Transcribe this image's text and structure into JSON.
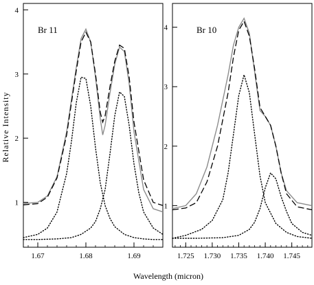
{
  "chart_data": [
    {
      "type": "line",
      "panel_label": "Br 11",
      "xlabel": "Wavelength (micron)",
      "ylabel": "Relative Intensity",
      "xlim": [
        1.667,
        1.696
      ],
      "ylim": [
        0.3,
        4.1
      ],
      "xticks": [
        1.67,
        1.68,
        1.69
      ],
      "yticks": [
        1,
        2,
        3,
        4
      ],
      "grid": false,
      "series": [
        {
          "style": "solid-gray",
          "color": "#8c8c8c",
          "x": [
            1.667,
            1.67,
            1.672,
            1.674,
            1.676,
            1.677,
            1.678,
            1.679,
            1.68,
            1.681,
            1.682,
            1.683,
            1.6835,
            1.684,
            1.685,
            1.686,
            1.687,
            1.688,
            1.689,
            1.69,
            1.692,
            1.694,
            1.696
          ],
          "y": [
            0.98,
            1.0,
            1.1,
            1.4,
            2.1,
            2.6,
            3.1,
            3.55,
            3.7,
            3.5,
            2.95,
            2.3,
            2.05,
            2.2,
            2.7,
            3.15,
            3.42,
            3.35,
            2.85,
            2.1,
            1.2,
            0.9,
            0.85
          ]
        },
        {
          "style": "dashed",
          "color": "#000000",
          "x": [
            1.667,
            1.67,
            1.672,
            1.674,
            1.676,
            1.677,
            1.678,
            1.679,
            1.68,
            1.681,
            1.682,
            1.683,
            1.6835,
            1.684,
            1.685,
            1.686,
            1.687,
            1.688,
            1.689,
            1.69,
            1.692,
            1.694,
            1.696
          ],
          "y": [
            0.96,
            0.98,
            1.08,
            1.38,
            2.05,
            2.55,
            3.05,
            3.5,
            3.65,
            3.5,
            3.0,
            2.4,
            2.25,
            2.35,
            2.8,
            3.2,
            3.45,
            3.4,
            2.95,
            2.25,
            1.35,
            1.0,
            0.95
          ]
        },
        {
          "style": "dotted",
          "color": "#000000",
          "x": [
            1.667,
            1.67,
            1.672,
            1.674,
            1.676,
            1.677,
            1.678,
            1.679,
            1.68,
            1.681,
            1.682,
            1.683,
            1.684,
            1.685,
            1.686,
            1.688,
            1.69,
            1.692,
            1.694,
            1.696
          ],
          "y": [
            0.45,
            0.5,
            0.6,
            0.85,
            1.45,
            1.95,
            2.55,
            2.95,
            2.93,
            2.5,
            1.85,
            1.3,
            0.95,
            0.75,
            0.62,
            0.5,
            0.45,
            0.43,
            0.42,
            0.42
          ]
        },
        {
          "style": "dotted",
          "color": "#000000",
          "x": [
            1.667,
            1.67,
            1.674,
            1.677,
            1.679,
            1.681,
            1.682,
            1.683,
            1.684,
            1.685,
            1.686,
            1.687,
            1.688,
            1.689,
            1.69,
            1.691,
            1.692,
            1.694,
            1.696
          ],
          "y": [
            0.42,
            0.42,
            0.43,
            0.45,
            0.5,
            0.6,
            0.7,
            0.9,
            1.2,
            1.75,
            2.35,
            2.72,
            2.65,
            2.2,
            1.6,
            1.15,
            0.85,
            0.6,
            0.5
          ]
        }
      ]
    },
    {
      "type": "line",
      "panel_label": "Br 10",
      "xlabel": "Wavelength (micron)",
      "ylabel": "",
      "xlim": [
        1.7225,
        1.7488
      ],
      "ylim": [
        0.3,
        4.4
      ],
      "xticks": [
        1.725,
        1.73,
        1.735,
        1.74,
        1.745
      ],
      "xtick_labels": [
        "1.725",
        "1.730",
        "1.735",
        "1.740",
        "1.745"
      ],
      "yticks": [
        1,
        2,
        3,
        4
      ],
      "grid": false,
      "series": [
        {
          "style": "solid-gray",
          "color": "#8c8c8c",
          "x": [
            1.7225,
            1.725,
            1.727,
            1.729,
            1.731,
            1.733,
            1.734,
            1.735,
            1.736,
            1.737,
            1.738,
            1.739,
            1.74,
            1.741,
            1.742,
            1.743,
            1.744,
            1.746,
            1.7488
          ],
          "y": [
            0.95,
            1.0,
            1.2,
            1.65,
            2.35,
            3.2,
            3.7,
            4.0,
            4.15,
            3.9,
            3.25,
            2.6,
            2.5,
            2.35,
            2.0,
            1.55,
            1.25,
            1.05,
            1.0
          ]
        },
        {
          "style": "dashed",
          "color": "#000000",
          "x": [
            1.7225,
            1.725,
            1.727,
            1.729,
            1.731,
            1.733,
            1.734,
            1.735,
            1.736,
            1.737,
            1.738,
            1.739,
            1.74,
            1.741,
            1.742,
            1.743,
            1.744,
            1.746,
            1.7488
          ],
          "y": [
            0.93,
            0.96,
            1.05,
            1.4,
            2.0,
            2.9,
            3.5,
            3.95,
            4.1,
            3.85,
            3.3,
            2.65,
            2.5,
            2.35,
            2.0,
            1.55,
            1.2,
            0.98,
            0.93
          ]
        },
        {
          "style": "dotted",
          "color": "#000000",
          "x": [
            1.7225,
            1.725,
            1.728,
            1.73,
            1.732,
            1.733,
            1.734,
            1.735,
            1.736,
            1.737,
            1.738,
            1.739,
            1.74,
            1.742,
            1.744,
            1.746,
            1.7488
          ],
          "y": [
            0.45,
            0.5,
            0.6,
            0.75,
            1.1,
            1.55,
            2.2,
            2.85,
            3.2,
            2.9,
            2.2,
            1.5,
            1.05,
            0.7,
            0.55,
            0.48,
            0.45
          ]
        },
        {
          "style": "dotted",
          "color": "#000000",
          "x": [
            1.7225,
            1.727,
            1.732,
            1.735,
            1.737,
            1.738,
            1.739,
            1.74,
            1.741,
            1.742,
            1.743,
            1.744,
            1.745,
            1.747,
            1.7488
          ],
          "y": [
            0.45,
            0.45,
            0.46,
            0.5,
            0.6,
            0.72,
            0.95,
            1.3,
            1.55,
            1.45,
            1.15,
            0.9,
            0.7,
            0.55,
            0.5
          ]
        }
      ]
    }
  ]
}
